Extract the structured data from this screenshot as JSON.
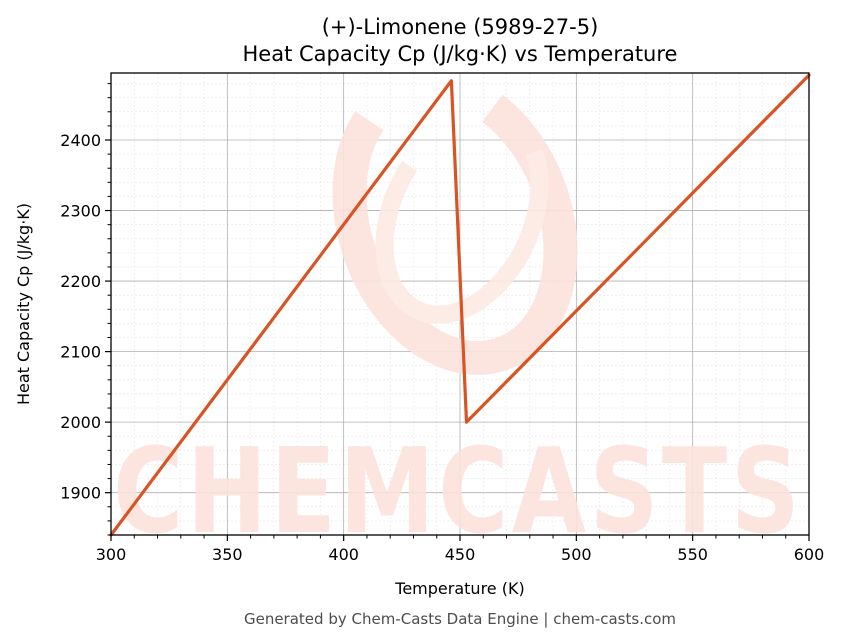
{
  "chart_data": {
    "type": "line",
    "title": "(+)-Limonene (5989-27-5)",
    "subtitle": "Heat Capacity Cp (J/kg·K) vs Temperature",
    "xlabel": "Temperature (K)",
    "ylabel": "Heat Capacity Cp (J/kg·K)",
    "xlim": [
      300,
      600
    ],
    "ylim": [
      1840,
      2495
    ],
    "xticks": [
      300,
      350,
      400,
      450,
      500,
      550,
      600
    ],
    "yticks": [
      1900,
      2000,
      2100,
      2200,
      2300,
      2400
    ],
    "grid": true,
    "series": [
      {
        "color": "#d95425",
        "x": [
          300,
          446.3,
          452.8,
          600
        ],
        "y": [
          1840,
          2484,
          2000,
          2492
        ]
      }
    ]
  },
  "footer": "Generated by Chem-Casts Data Engine | chem-casts.com",
  "watermark": {
    "text": "CHEMCASTS",
    "color": "#fde2dc"
  }
}
